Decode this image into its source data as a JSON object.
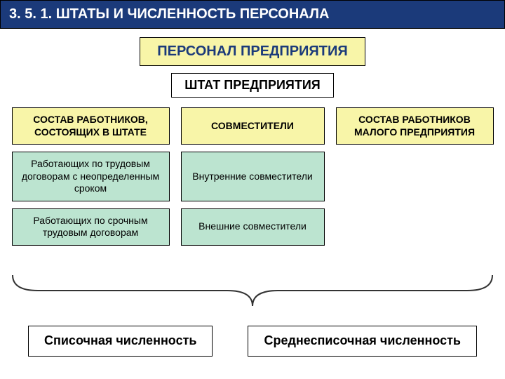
{
  "colors": {
    "header_bg": "#1b3a7a",
    "header_text": "#ffffff",
    "title_bg": "#f8f5a8",
    "title_text": "#1b3a7a",
    "yellow_bg": "#f8f5a8",
    "yellow_text": "#000000",
    "green_bg": "#bce4d0",
    "green_text": "#000000",
    "brace_stroke": "#333333"
  },
  "header": "3. 5. 1.   ШТАТЫ И ЧИСЛЕННОСТЬ ПЕРСОНАЛА",
  "title": "ПЕРСОНАЛ  ПРЕДПРИЯТИЯ",
  "subtitle": "ШТАТ ПРЕДПРИЯТИЯ",
  "row1": {
    "c1": "СОСТАВ РАБОТНИКОВ, СОСТОЯЩИХ В ШТАТЕ",
    "c2": "СОВМЕСТИТЕЛИ",
    "c3": "СОСТАВ  РАБОТНИКОВ МАЛОГО ПРЕДПРИЯТИЯ"
  },
  "row2": {
    "c1": "Работающих по трудовым договорам с неопределенным сроком",
    "c2": "Внутренние совместители"
  },
  "row3": {
    "c1": "Работающих по срочным трудовым договорам",
    "c2": "Внешние     совместители"
  },
  "footer": {
    "left": "Списочная численность",
    "right": "Среднесписочная численность"
  }
}
